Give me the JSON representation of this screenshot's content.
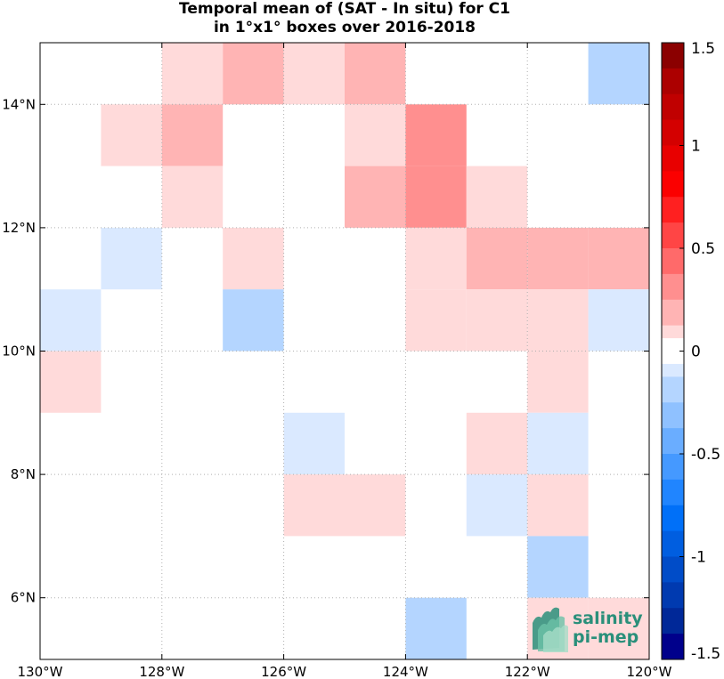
{
  "chart_data": {
    "type": "heatmap",
    "title": "Temporal mean of (SAT - In situ) for C1",
    "subtitle": "in 1°x1° boxes over 2016-2018",
    "xlabel": "",
    "ylabel": "",
    "xlim": [
      -130,
      -120
    ],
    "ylim": [
      5,
      15
    ],
    "x_ticks": [
      -130,
      -128,
      -126,
      -124,
      -122,
      -120
    ],
    "x_tick_labels": [
      "130°W",
      "128°W",
      "126°W",
      "124°W",
      "122°W",
      "120°W"
    ],
    "y_ticks": [
      6,
      8,
      10,
      12,
      14
    ],
    "y_tick_labels": [
      "6°N",
      "8°N",
      "10°N",
      "12°N",
      "14°N"
    ],
    "grid": true,
    "colorbar": {
      "range": [
        -1.5,
        1.5
      ],
      "ticks": [
        1.5,
        1,
        0.5,
        0,
        -0.5,
        -1,
        -1.5
      ],
      "tick_labels": [
        "1.5",
        "1",
        "0.5",
        "0",
        "-0.5",
        "-1",
        "-1.5"
      ]
    },
    "cells": [
      {
        "lon": -128,
        "lat": 14,
        "value": 0.1
      },
      {
        "lon": -127,
        "lat": 14,
        "value": 0.3
      },
      {
        "lon": -126,
        "lat": 14,
        "value": 0.1
      },
      {
        "lon": -125,
        "lat": 14,
        "value": 0.2
      },
      {
        "lon": -121,
        "lat": 14,
        "value": -0.2
      },
      {
        "lon": -129,
        "lat": 13,
        "value": 0.1
      },
      {
        "lon": -128,
        "lat": 13,
        "value": 0.25
      },
      {
        "lon": -125,
        "lat": 13,
        "value": 0.1
      },
      {
        "lon": -124,
        "lat": 13,
        "value": 0.35
      },
      {
        "lon": -128,
        "lat": 12,
        "value": 0.1
      },
      {
        "lon": -125,
        "lat": 12,
        "value": 0.25
      },
      {
        "lon": -124,
        "lat": 12,
        "value": 0.35
      },
      {
        "lon": -123,
        "lat": 12,
        "value": 0.1
      },
      {
        "lon": -129,
        "lat": 11,
        "value": -0.1
      },
      {
        "lon": -127,
        "lat": 11,
        "value": 0.1
      },
      {
        "lon": -124,
        "lat": 11,
        "value": 0.1
      },
      {
        "lon": -123,
        "lat": 11,
        "value": 0.2
      },
      {
        "lon": -122,
        "lat": 11,
        "value": 0.2
      },
      {
        "lon": -121,
        "lat": 11,
        "value": 0.2
      },
      {
        "lon": -130,
        "lat": 10,
        "value": -0.1
      },
      {
        "lon": -127,
        "lat": 10,
        "value": -0.2
      },
      {
        "lon": -124,
        "lat": 10,
        "value": 0.1
      },
      {
        "lon": -123,
        "lat": 10,
        "value": 0.1
      },
      {
        "lon": -122,
        "lat": 10,
        "value": 0.1
      },
      {
        "lon": -121,
        "lat": 10,
        "value": -0.1
      },
      {
        "lon": -130,
        "lat": 9,
        "value": 0.1
      },
      {
        "lon": -122,
        "lat": 9,
        "value": 0.1
      },
      {
        "lon": -126,
        "lat": 8,
        "value": -0.1
      },
      {
        "lon": -123,
        "lat": 8,
        "value": 0.1
      },
      {
        "lon": -122,
        "lat": 8,
        "value": -0.1
      },
      {
        "lon": -126,
        "lat": 7,
        "value": 0.1
      },
      {
        "lon": -125,
        "lat": 7,
        "value": 0.1
      },
      {
        "lon": -123,
        "lat": 7,
        "value": -0.1
      },
      {
        "lon": -122,
        "lat": 7,
        "value": 0.1
      },
      {
        "lon": -122,
        "lat": 6,
        "value": -0.2
      },
      {
        "lon": -124,
        "lat": 5,
        "value": -0.2
      },
      {
        "lon": -122,
        "lat": 5,
        "value": 0.1
      },
      {
        "lon": -121,
        "lat": 5,
        "value": 0.1
      }
    ]
  },
  "logo": {
    "line1": "salinity",
    "line2": "pi-mep"
  },
  "colors": {
    "positive_strong": "#8b0000",
    "negative_strong": "#00008b",
    "brand": "#2a8f7a"
  }
}
